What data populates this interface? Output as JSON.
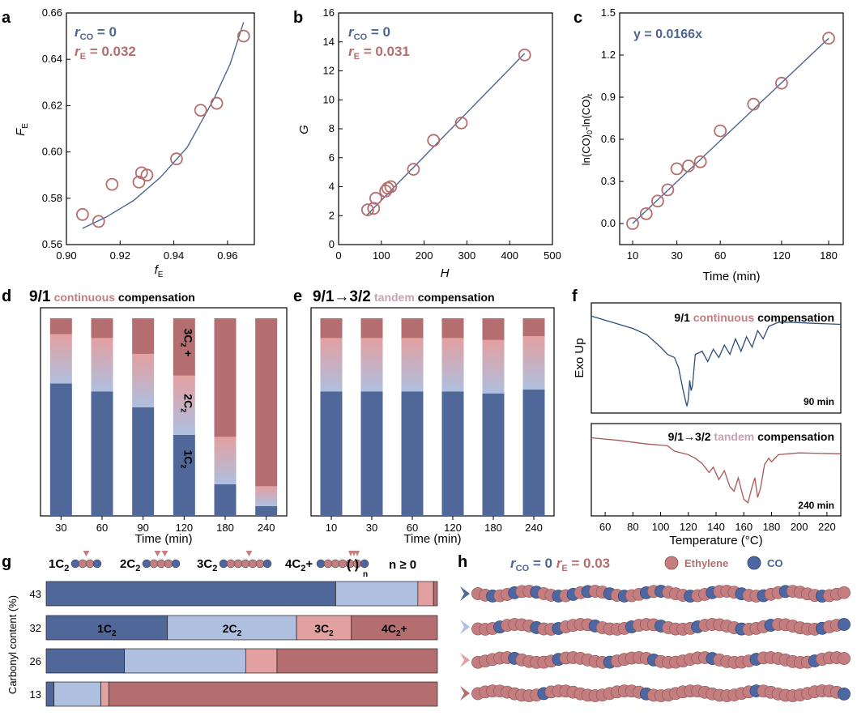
{
  "colors": {
    "blue": "#50679a",
    "light_blue": "#aebfdf",
    "pink": "#e3a0a1",
    "mauve": "#b46e6f",
    "line": "#4e6592",
    "ethylene": "#c47e80",
    "co": "#4d67a3"
  },
  "panels": {
    "a": "a",
    "b": "b",
    "c": "c",
    "d": "d",
    "e": "e",
    "f": "f",
    "g": "g",
    "h": "h"
  },
  "chart_data": [
    {
      "id": "a",
      "type": "scatter",
      "xlabel_main": "f",
      "xlabel_sub": "E",
      "ylabel_main": "F",
      "ylabel_sub": "E",
      "xlim": [
        0.9,
        0.97
      ],
      "ylim": [
        0.56,
        0.66
      ],
      "xticks": [
        "0.90",
        "0.92",
        "0.94",
        "0.96"
      ],
      "yticks": [
        "0.56",
        "0.58",
        "0.60",
        "0.62",
        "0.64",
        "0.66"
      ],
      "ann1": "r",
      "ann1_sub": "CO",
      "ann1_val": " = 0",
      "ann2": "r",
      "ann2_sub": "E",
      "ann2_val": " = 0.032",
      "points": [
        [
          0.906,
          0.573
        ],
        [
          0.912,
          0.57
        ],
        [
          0.917,
          0.586
        ],
        [
          0.927,
          0.587
        ],
        [
          0.928,
          0.591
        ],
        [
          0.93,
          0.59
        ],
        [
          0.941,
          0.597
        ],
        [
          0.95,
          0.618
        ],
        [
          0.956,
          0.621
        ],
        [
          0.966,
          0.65
        ]
      ],
      "fit": [
        [
          0.906,
          0.567
        ],
        [
          0.915,
          0.572
        ],
        [
          0.925,
          0.579
        ],
        [
          0.935,
          0.589
        ],
        [
          0.945,
          0.602
        ],
        [
          0.955,
          0.623
        ],
        [
          0.961,
          0.638
        ],
        [
          0.966,
          0.656
        ]
      ]
    },
    {
      "id": "b",
      "type": "scatter",
      "xlabel_main": "H",
      "ylabel_main": "G",
      "xlim": [
        0,
        500
      ],
      "ylim": [
        0,
        16
      ],
      "xticks": [
        "0",
        "100",
        "200",
        "300",
        "400",
        "500"
      ],
      "yticks": [
        "0",
        "2",
        "4",
        "6",
        "8",
        "10",
        "12",
        "14",
        "16"
      ],
      "ann1": "r",
      "ann1_sub": "CO",
      "ann1_val": " = 0",
      "ann2": "r",
      "ann2_sub": "E",
      "ann2_val": " = 0.031",
      "points": [
        [
          68,
          2.4
        ],
        [
          82,
          2.5
        ],
        [
          87,
          3.2
        ],
        [
          110,
          3.7
        ],
        [
          115,
          3.9
        ],
        [
          122,
          4.0
        ],
        [
          175,
          5.2
        ],
        [
          222,
          7.2
        ],
        [
          287,
          8.4
        ],
        [
          435,
          13.1
        ]
      ],
      "fit": [
        [
          65,
          2.0
        ],
        [
          435,
          13.2
        ]
      ]
    },
    {
      "id": "c",
      "type": "scatter",
      "xlabel": "Time (min)",
      "ylabel": "ln(CO)0-ln(CO)t",
      "ylim": [
        -0.15,
        1.5
      ],
      "xticks": [
        "10",
        "30",
        "60",
        "120",
        "180"
      ],
      "yticks": [
        "0.0",
        "0.3",
        "0.6",
        "0.9",
        "1.2",
        "1.5"
      ],
      "equation": "y = 0.0166x",
      "points": [
        [
          10,
          0.0
        ],
        [
          15,
          0.07
        ],
        [
          20,
          0.16
        ],
        [
          25,
          0.24
        ],
        [
          30,
          0.39
        ],
        [
          37,
          0.41
        ],
        [
          45,
          0.44
        ],
        [
          60,
          0.66
        ],
        [
          90,
          0.85
        ],
        [
          120,
          1.0
        ],
        [
          180,
          1.32
        ]
      ]
    },
    {
      "id": "d",
      "type": "bar",
      "title_main": "9/1",
      "title_colored": "continuous",
      "title_rest": "compensation",
      "xlabel": "Time (min)",
      "categories": [
        "30",
        "60",
        "90",
        "120",
        "180",
        "240"
      ],
      "series": [
        {
          "name": "1C2",
          "values": [
            67,
            63,
            55,
            41,
            16,
            5
          ]
        },
        {
          "name": "2C2",
          "values": [
            10,
            11,
            10,
            12,
            4,
            4
          ]
        },
        {
          "name": "3C2",
          "values": [
            15,
            16,
            17,
            18,
            20,
            6
          ]
        },
        {
          "name": "4C2+",
          "values": [
            8,
            10,
            18,
            29,
            60,
            85
          ]
        }
      ],
      "seg_labels": {
        "c1": "1C",
        "c2": "2C",
        "c3": "3C",
        "sub": "2",
        "plus": "+"
      }
    },
    {
      "id": "e",
      "type": "bar",
      "title_main": "9/1→3/2",
      "title_colored": "tandem",
      "title_rest": "compensation",
      "xlabel": "Time (min)",
      "categories": [
        "10",
        "30",
        "60",
        "120",
        "180",
        "240"
      ],
      "series": [
        {
          "name": "1C2",
          "values": [
            63,
            63,
            63,
            63,
            62,
            64
          ]
        },
        {
          "name": "2C2",
          "values": [
            11,
            11,
            11,
            11,
            11,
            11
          ]
        },
        {
          "name": "3C2",
          "values": [
            16,
            16,
            16,
            16,
            16,
            16
          ]
        },
        {
          "name": "4C2+",
          "values": [
            10,
            10,
            10,
            10,
            11,
            9
          ]
        }
      ]
    },
    {
      "id": "f",
      "type": "line",
      "ylabel": "Exo Up",
      "xlabel": "Temperature (°C)",
      "xlim": [
        50,
        230
      ],
      "xticks": [
        "60",
        "80",
        "100",
        "120",
        "140",
        "160",
        "180",
        "200",
        "220"
      ],
      "top": {
        "title_main": "9/1",
        "title_colored": "continuous",
        "title_rest": "compensation",
        "time": "90 min"
      },
      "bottom": {
        "title_main": "9/1→3/2",
        "title_colored": "tandem",
        "title_rest": "compensation",
        "time": "240 min"
      },
      "top_curve": [
        [
          50,
          0.92
        ],
        [
          60,
          0.88
        ],
        [
          70,
          0.84
        ],
        [
          80,
          0.8
        ],
        [
          90,
          0.74
        ],
        [
          100,
          0.62
        ],
        [
          105,
          0.55
        ],
        [
          110,
          0.52
        ],
        [
          113,
          0.42
        ],
        [
          116,
          0.22
        ],
        [
          118,
          0.1
        ],
        [
          119,
          0.05
        ],
        [
          120,
          0.12
        ],
        [
          121,
          0.3
        ],
        [
          122,
          0.2
        ],
        [
          123,
          0.25
        ],
        [
          125,
          0.55
        ],
        [
          130,
          0.58
        ],
        [
          134,
          0.48
        ],
        [
          138,
          0.6
        ],
        [
          142,
          0.52
        ],
        [
          146,
          0.64
        ],
        [
          150,
          0.55
        ],
        [
          154,
          0.7
        ],
        [
          158,
          0.58
        ],
        [
          162,
          0.72
        ],
        [
          166,
          0.62
        ],
        [
          170,
          0.78
        ],
        [
          174,
          0.7
        ],
        [
          178,
          0.82
        ],
        [
          185,
          0.86
        ],
        [
          195,
          0.86
        ],
        [
          210,
          0.85
        ],
        [
          230,
          0.84
        ]
      ],
      "bottom_curve": [
        [
          50,
          0.85
        ],
        [
          70,
          0.82
        ],
        [
          90,
          0.78
        ],
        [
          105,
          0.76
        ],
        [
          110,
          0.7
        ],
        [
          115,
          0.68
        ],
        [
          120,
          0.66
        ],
        [
          125,
          0.62
        ],
        [
          130,
          0.56
        ],
        [
          135,
          0.46
        ],
        [
          138,
          0.52
        ],
        [
          142,
          0.38
        ],
        [
          146,
          0.48
        ],
        [
          150,
          0.3
        ],
        [
          153,
          0.25
        ],
        [
          156,
          0.4
        ],
        [
          160,
          0.16
        ],
        [
          163,
          0.12
        ],
        [
          166,
          0.3
        ],
        [
          168,
          0.4
        ],
        [
          170,
          0.18
        ],
        [
          172,
          0.28
        ],
        [
          175,
          0.55
        ],
        [
          178,
          0.62
        ],
        [
          180,
          0.58
        ],
        [
          185,
          0.66
        ],
        [
          200,
          0.68
        ],
        [
          230,
          0.67
        ]
      ]
    },
    {
      "id": "g",
      "type": "bar",
      "ylabel": "Carbonyl content (%)",
      "categories": [
        "43",
        "32",
        "26",
        "13"
      ],
      "series": [
        {
          "name": "1C2",
          "values": [
            74,
            31,
            20,
            2
          ]
        },
        {
          "name": "2C2",
          "values": [
            21,
            33,
            31,
            12
          ]
        },
        {
          "name": "3C2",
          "values": [
            4,
            14,
            8,
            2
          ]
        },
        {
          "name": "4C2+",
          "values": [
            1,
            22,
            41,
            84
          ]
        }
      ],
      "legend": [
        {
          "main": "1C",
          "sub": "2"
        },
        {
          "main": "2C",
          "sub": "2"
        },
        {
          "main": "3C",
          "sub": "2"
        },
        {
          "main": "4C",
          "sub": "2",
          "tail": "+"
        }
      ],
      "paren": "( )",
      "paren_sub": "n",
      "n_label": "n ≥ 0",
      "seg_labels": [
        "1C",
        "2C",
        "3C",
        "4C"
      ]
    },
    {
      "id": "h",
      "type": "diagram",
      "rco_r": "r",
      "rco_sub": "CO",
      "rco_val": " = 0",
      "re_r": "r",
      "re_sub": "E",
      "re_val": " = 0.03",
      "legend_ethylene": "Ethylene",
      "legend_co": "CO",
      "chains": [
        [
          0,
          0,
          1,
          0,
          0,
          1,
          0,
          0,
          1,
          0,
          0,
          1,
          0,
          1,
          0,
          1,
          0,
          0,
          1,
          0,
          1,
          0,
          0,
          1,
          0,
          1,
          0,
          0,
          0,
          1,
          0,
          0,
          1,
          0,
          0,
          0,
          1,
          0,
          0,
          1,
          0,
          0,
          1,
          0,
          0,
          0,
          0,
          1,
          0,
          0,
          0
        ],
        [
          0,
          0,
          0,
          1,
          0,
          0,
          0,
          0,
          1,
          0,
          0,
          1,
          0,
          0,
          0,
          0,
          1,
          0,
          0,
          0,
          0,
          1,
          0,
          0,
          0,
          1,
          0,
          0,
          0,
          0,
          1,
          0,
          0,
          0,
          0,
          0,
          1,
          0,
          0,
          0,
          1,
          0,
          0,
          0,
          0,
          0,
          0,
          1,
          0,
          0,
          1
        ],
        [
          0,
          0,
          0,
          0,
          0,
          1,
          0,
          0,
          0,
          0,
          0,
          1,
          0,
          0,
          0,
          0,
          0,
          0,
          1,
          0,
          0,
          0,
          0,
          0,
          1,
          0,
          0,
          0,
          0,
          0,
          0,
          0,
          1,
          0,
          0,
          0,
          0,
          0,
          1,
          0,
          0,
          0,
          0,
          0,
          0,
          0,
          1,
          0,
          0,
          0,
          0
        ],
        [
          0,
          0,
          0,
          0,
          0,
          0,
          0,
          0,
          0,
          1,
          0,
          0,
          0,
          0,
          0,
          0,
          0,
          0,
          0,
          0,
          0,
          0,
          0,
          1,
          0,
          0,
          0,
          0,
          0,
          0,
          0,
          0,
          0,
          0,
          0,
          0,
          0,
          0,
          1,
          0,
          0,
          0,
          0,
          0,
          0,
          0,
          0,
          0,
          0,
          0,
          1
        ]
      ]
    }
  ]
}
